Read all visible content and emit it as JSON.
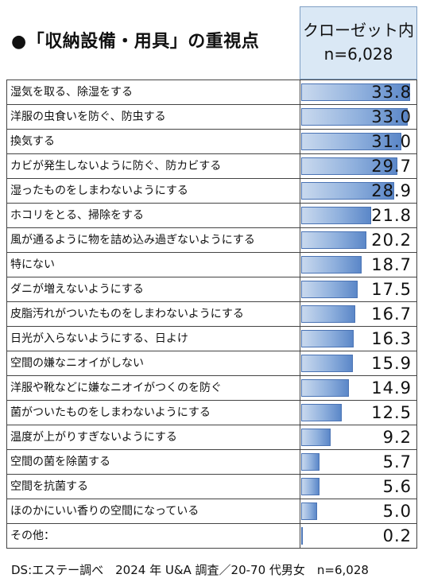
{
  "title": "●「収納設備・用具」の重視点",
  "header": {
    "line1": "クローゼット内",
    "line2": "n=6,028"
  },
  "source": "DS:エステー調べ　2024 年 U&A 調査／20-70 代男女　n=6,028",
  "chart_data": {
    "type": "bar",
    "title": "●「収納設備・用具」の重視点",
    "series": [
      {
        "name": "クローゼット内",
        "values": [
          33.8,
          33.0,
          31.0,
          29.7,
          28.9,
          21.8,
          20.2,
          18.7,
          17.5,
          16.7,
          16.3,
          15.9,
          14.9,
          12.5,
          9.2,
          5.7,
          5.6,
          5.0,
          0.2
        ]
      }
    ],
    "categories": [
      "湿気を取る、除湿をする",
      "洋服の虫食いを防ぐ、防虫する",
      "換気する",
      "カビが発生しないように防ぐ、防カビする",
      "湿ったものをしまわないようにする",
      "ホコリをとる、掃除をする",
      "風が通るように物を詰め込み過ぎないようにする",
      "特にない",
      "ダニが増えないようにする",
      "皮脂汚れがついたものをしまわないようにする",
      "日光が入らないようにする、日よけ",
      "空間の嫌なニオイがしない",
      "洋服や靴などに嫌なニオイがつくのを防ぐ",
      "菌がついたものをしまわないようにする",
      "温度が上がりすぎないようにする",
      "空間の菌を除菌する",
      "空間を抗菌する",
      "ほのかにいい香りの空間になっている",
      "その他："
    ],
    "value_labels": [
      "33.8",
      "33.0",
      "31.0",
      "29.7",
      "28.9",
      "21.8",
      "20.2",
      "18.7",
      "17.5",
      "16.7",
      "16.3",
      "15.9",
      "14.9",
      "12.5",
      "9.2",
      "5.7",
      "5.6",
      "5.0",
      "0.2"
    ],
    "xlim": [
      0,
      34
    ],
    "orientation": "horizontal"
  }
}
